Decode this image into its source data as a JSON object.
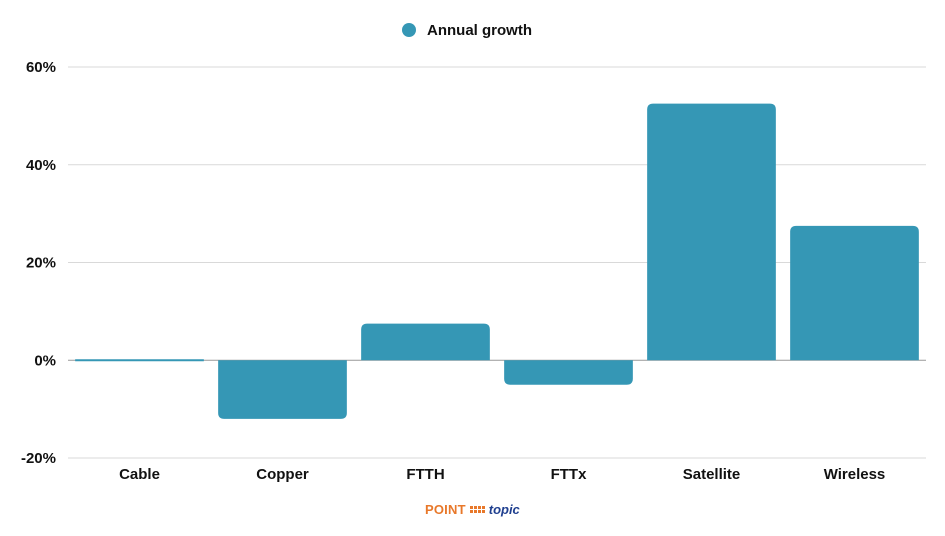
{
  "chart_data": {
    "type": "bar",
    "categories": [
      "Cable",
      "Copper",
      "FTTH",
      "FTTx",
      "Satellite",
      "Wireless"
    ],
    "series": [
      {
        "name": "Annual growth",
        "values": [
          0.2,
          -12,
          7.5,
          -5,
          52.5,
          27.5
        ]
      }
    ],
    "ylim": [
      -20,
      60
    ],
    "yticks": [
      "-20%",
      "0%",
      "20%",
      "40%",
      "60%"
    ],
    "ytick_values": [
      -20,
      0,
      20,
      40,
      60
    ],
    "grid": true,
    "legend_position": "top-center",
    "colors": {
      "bar": "#3597b5",
      "grid": "#d9d9d9",
      "zero_line": "#999999"
    }
  },
  "logo": {
    "brand": "POINT",
    "suffix": "topic"
  }
}
